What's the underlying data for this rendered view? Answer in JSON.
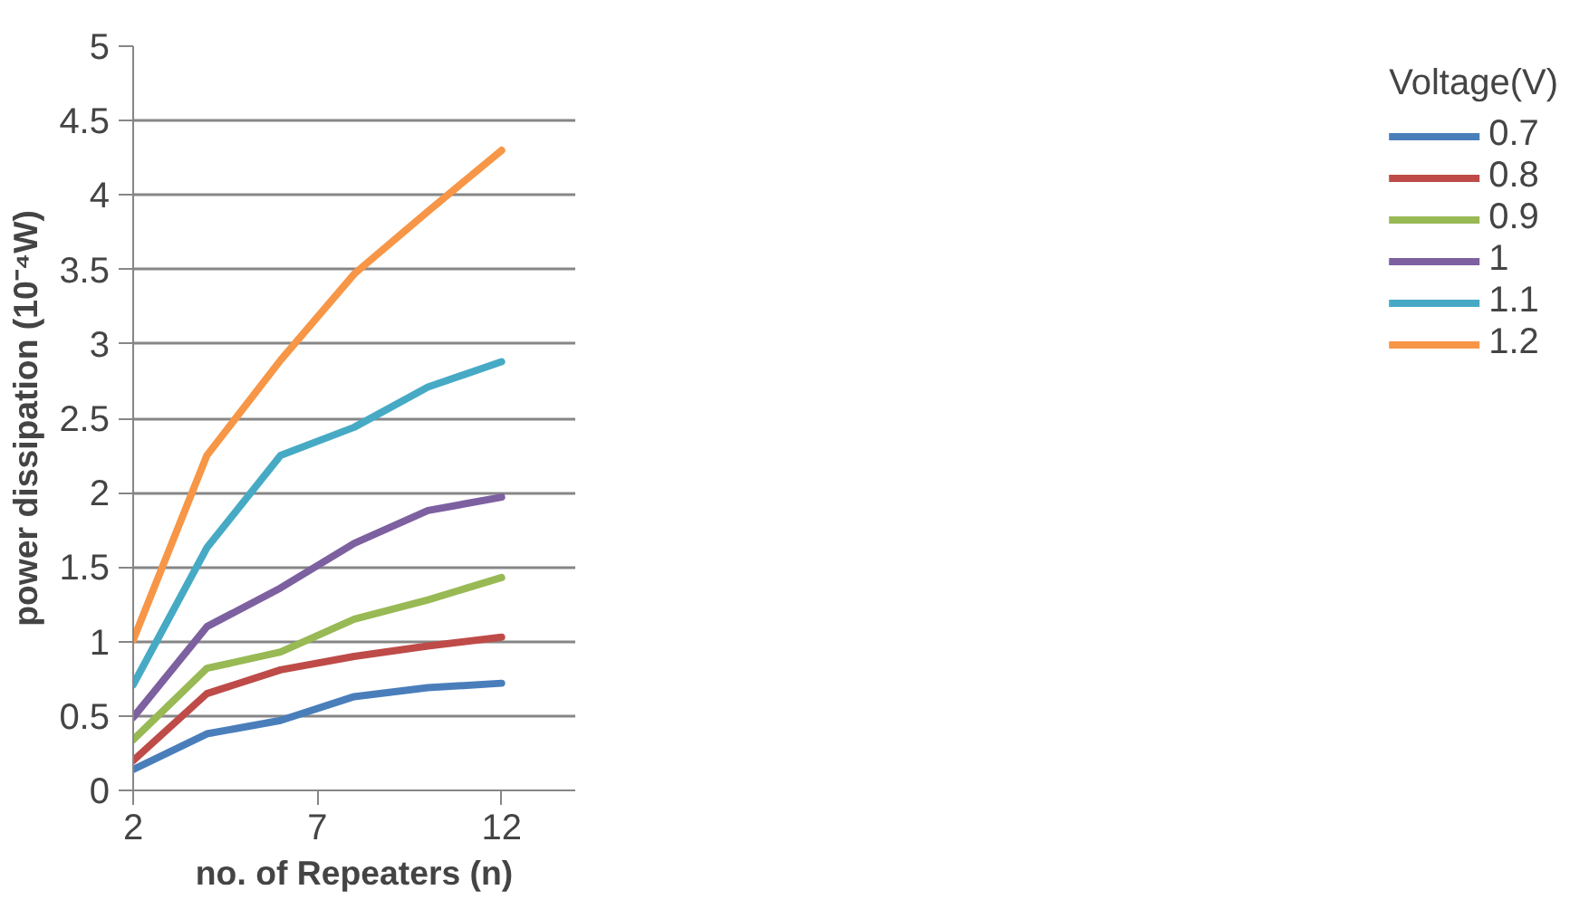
{
  "chart_data": {
    "type": "line",
    "xlabel": "no. of Repeaters (n)",
    "ylabel": "power dissipation (10⁻⁴W)",
    "legend_title": "Voltage(V)",
    "x": [
      2,
      4,
      6,
      8,
      10,
      12
    ],
    "series": [
      {
        "name": "0.7",
        "color": "#4a7ebb",
        "values": [
          0.14,
          0.38,
          0.47,
          0.63,
          0.69,
          0.72
        ]
      },
      {
        "name": "0.8",
        "color": "#be4b48",
        "values": [
          0.2,
          0.65,
          0.81,
          0.9,
          0.97,
          1.03
        ]
      },
      {
        "name": "0.9",
        "color": "#98b954",
        "values": [
          0.34,
          0.82,
          0.93,
          1.15,
          1.28,
          1.43
        ]
      },
      {
        "name": "1",
        "color": "#7d60a0",
        "values": [
          0.49,
          1.1,
          1.36,
          1.66,
          1.88,
          1.97
        ]
      },
      {
        "name": "1.1",
        "color": "#46aac5",
        "values": [
          0.71,
          1.63,
          2.25,
          2.44,
          2.71,
          2.88
        ]
      },
      {
        "name": "1.2",
        "color": "#f79646",
        "values": [
          1.01,
          2.25,
          2.89,
          3.47,
          3.89,
          4.3
        ]
      }
    ],
    "xlim": [
      2,
      14
    ],
    "xticks": [
      2,
      7,
      12
    ],
    "ylim": [
      0,
      5
    ],
    "yticks": [
      0,
      0.5,
      1,
      1.5,
      2,
      2.5,
      3,
      3.5,
      4,
      4.5,
      5
    ],
    "grid": "y",
    "legend": "right",
    "marker": "none",
    "line_style": "solid"
  }
}
